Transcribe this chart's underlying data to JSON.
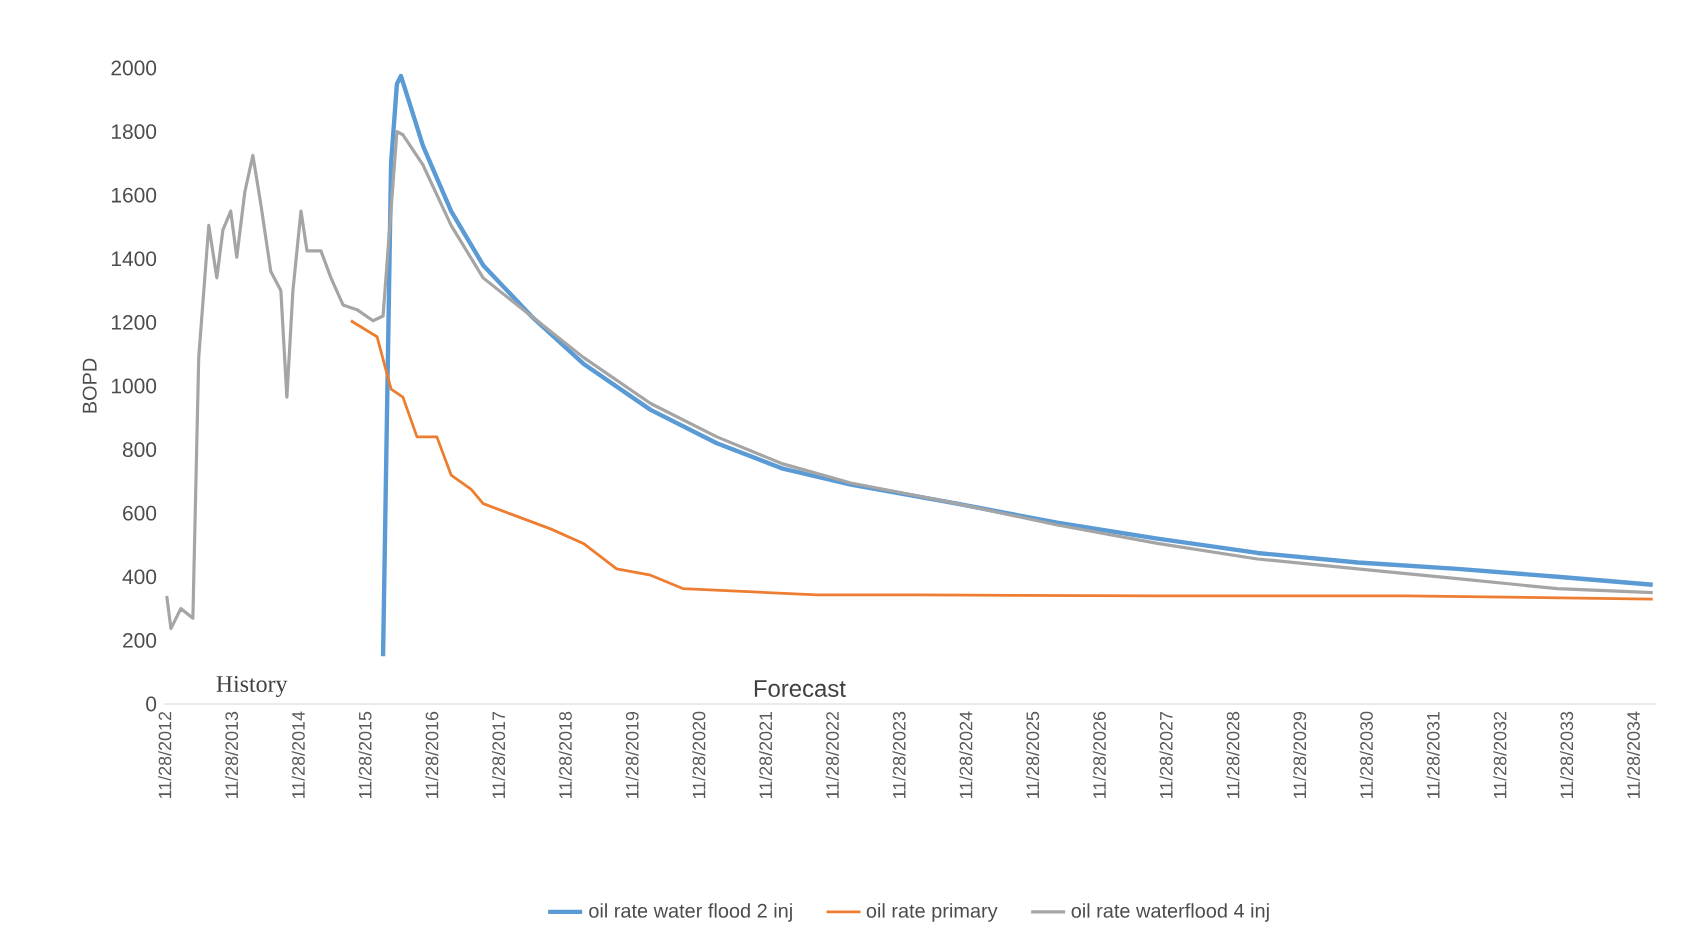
{
  "chart_data": {
    "type": "line",
    "ylabel": "BOPD",
    "annotations": [
      "History",
      "Forecast"
    ],
    "xlim": [
      "2012-11-24",
      "2035-04-01"
    ],
    "ylim": [
      0,
      2000
    ],
    "xticks": [
      {
        "value": "2012-11-28",
        "label": "11/28/2012"
      },
      {
        "value": "2013-11-28",
        "label": "11/28/2013"
      },
      {
        "value": "2014-11-28",
        "label": "11/28/2014"
      },
      {
        "value": "2015-11-28",
        "label": "11/28/2015"
      },
      {
        "value": "2016-11-28",
        "label": "11/28/2016"
      },
      {
        "value": "2017-11-28",
        "label": "11/28/2017"
      },
      {
        "value": "2018-11-28",
        "label": "11/28/2018"
      },
      {
        "value": "2019-11-28",
        "label": "11/28/2019"
      },
      {
        "value": "2020-11-28",
        "label": "11/28/2020"
      },
      {
        "value": "2021-11-28",
        "label": "11/28/2021"
      },
      {
        "value": "2022-11-28",
        "label": "11/28/2022"
      },
      {
        "value": "2023-11-28",
        "label": "11/28/2023"
      },
      {
        "value": "2024-11-28",
        "label": "11/28/2024"
      },
      {
        "value": "2025-11-28",
        "label": "11/28/2025"
      },
      {
        "value": "2026-11-28",
        "label": "11/28/2026"
      },
      {
        "value": "2027-11-28",
        "label": "11/28/2027"
      },
      {
        "value": "2028-11-28",
        "label": "11/28/2028"
      },
      {
        "value": "2029-11-28",
        "label": "11/28/2029"
      },
      {
        "value": "2030-11-28",
        "label": "11/28/2030"
      },
      {
        "value": "2031-11-28",
        "label": "11/28/2031"
      },
      {
        "value": "2032-11-28",
        "label": "11/28/2032"
      },
      {
        "value": "2033-11-28",
        "label": "11/28/2033"
      },
      {
        "value": "2034-11-28",
        "label": "11/28/2034"
      }
    ],
    "yticks": [
      0,
      200,
      400,
      600,
      800,
      1000,
      1200,
      1400,
      1600,
      1800,
      2000
    ],
    "legend": "bottom",
    "grid": false,
    "marker": "none",
    "line_style": "solid",
    "series": [
      {
        "name": "oil rate water flood 2 inj",
        "color": "#5b9bd5",
        "x": [
          "2016-03-06",
          "2016-04-19",
          "2016-05-21",
          "2016-06-12",
          "2016-10-11",
          "2017-03-14",
          "2017-09-05",
          "2018-05-26",
          "2019-03-07",
          "2020-03-09",
          "2021-03-07",
          "2022-03-03",
          "2023-03-10",
          "2024-10-11",
          "2026-04-12",
          "2027-10-12",
          "2029-04-12",
          "2030-10-12",
          "2032-04-09",
          "2033-10-08",
          "2035-03-14"
        ],
        "values": [
          150,
          1700,
          1950,
          1975,
          1755,
          1550,
          1380,
          1220,
          1070,
          925,
          820,
          740,
          690,
          630,
          570,
          520,
          475,
          445,
          425,
          400,
          375
        ]
      },
      {
        "name": "oil rate primary",
        "color": "#ed7d31",
        "x": [
          "2015-09-12",
          "2016-02-02",
          "2016-04-19",
          "2016-06-23",
          "2016-09-08",
          "2016-12-26",
          "2017-03-14",
          "2017-07-02",
          "2017-09-05",
          "2018-03-10",
          "2018-09-12",
          "2019-03-07",
          "2019-09-05",
          "2020-03-09",
          "2020-09-01",
          "2022-09-05",
          "2024-03-06",
          "2027-10-12",
          "2031-07-02",
          "2035-03-14"
        ],
        "values": [
          1205,
          1155,
          990,
          965,
          840,
          840,
          720,
          675,
          630,
          590,
          550,
          505,
          425,
          405,
          363,
          343,
          343,
          340,
          340,
          330
        ]
      },
      {
        "name": "oil rate waterflood 4 inj",
        "color": "#a5a5a5",
        "x": [
          "2012-12-09",
          "2013-01-01",
          "2013-02-24",
          "2013-05-01",
          "2013-06-02",
          "2013-07-27",
          "2013-09-09",
          "2013-10-12",
          "2013-11-24",
          "2013-12-27",
          "2014-02-09",
          "2014-03-25",
          "2014-05-08",
          "2014-07-01",
          "2014-08-25",
          "2014-09-27",
          "2014-10-30",
          "2014-12-13",
          "2015-01-15",
          "2015-04-01",
          "2015-05-26",
          "2015-07-31",
          "2015-10-15",
          "2016-01-11",
          "2016-03-06",
          "2016-05-21",
          "2016-06-23",
          "2016-10-11",
          "2017-03-14",
          "2017-09-05",
          "2018-05-26",
          "2019-03-07",
          "2020-03-09",
          "2021-03-07",
          "2022-03-03",
          "2023-03-10",
          "2024-03-06",
          "2024-10-11",
          "2026-04-12",
          "2027-10-12",
          "2029-04-12",
          "2030-10-12",
          "2032-04-09",
          "2033-10-08",
          "2035-03-14"
        ],
        "values": [
          340,
          237,
          300,
          270,
          1090,
          1505,
          1340,
          1490,
          1550,
          1405,
          1610,
          1725,
          1570,
          1360,
          1300,
          965,
          1300,
          1550,
          1425,
          1425,
          1340,
          1255,
          1240,
          1205,
          1220,
          1800,
          1790,
          1695,
          1505,
          1340,
          1220,
          1090,
          945,
          840,
          755,
          695,
          655,
          630,
          563,
          505,
          456,
          425,
          394,
          363,
          350
        ]
      }
    ]
  }
}
